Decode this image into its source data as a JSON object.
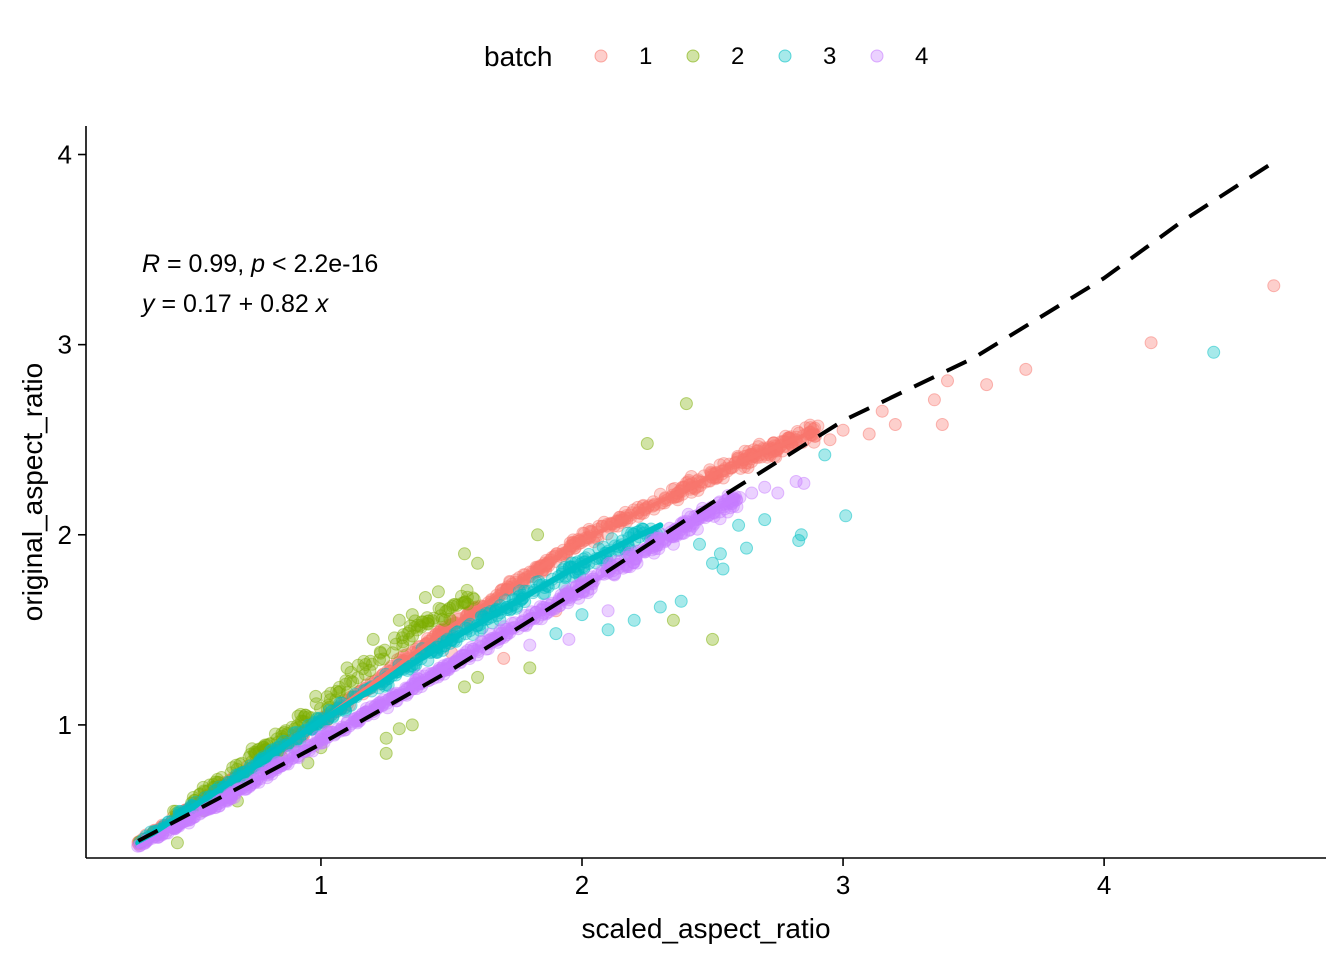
{
  "chart_data": {
    "type": "scatter",
    "xlabel": "scaled_aspect_ratio",
    "ylabel": "original_aspect_ratio",
    "xlim": [
      0.1,
      4.85
    ],
    "ylim": [
      0.3,
      4.15
    ],
    "x_ticks": [
      1,
      2,
      3,
      4
    ],
    "y_ticks": [
      1,
      2,
      3,
      4
    ],
    "grid": false,
    "legend": {
      "title": "batch",
      "placement": "top",
      "entries": [
        "1",
        "2",
        "3",
        "4"
      ]
    },
    "annotation": {
      "r_symbol": "R",
      "r_text": " = 0.99, ",
      "p_symbol": "p",
      "p_text": " < 2.2e-16",
      "y_symbol": "y",
      "eq_text": " = 0.17 + 0.82 ",
      "x_symbol": "x"
    },
    "series": [
      {
        "name": "1",
        "color": "#F8766D",
        "trend": [
          [
            0.3,
            0.38
          ],
          [
            1.0,
            1.02
          ],
          [
            1.5,
            1.52
          ],
          [
            2.0,
            1.97
          ],
          [
            2.6,
            2.38
          ],
          [
            2.9,
            2.55
          ]
        ],
        "outliers": [
          [
            3.0,
            2.55
          ],
          [
            3.1,
            2.53
          ],
          [
            3.15,
            2.65
          ],
          [
            3.2,
            2.58
          ],
          [
            3.35,
            2.71
          ],
          [
            3.38,
            2.58
          ],
          [
            3.4,
            2.81
          ],
          [
            3.55,
            2.79
          ],
          [
            3.7,
            2.87
          ],
          [
            4.18,
            3.01
          ],
          [
            4.65,
            3.31
          ],
          [
            2.95,
            2.5
          ],
          [
            2.82,
            2.5
          ],
          [
            2.7,
            2.45
          ],
          [
            1.5,
            1.38
          ],
          [
            1.7,
            1.35
          ],
          [
            1.9,
            1.6
          ]
        ]
      },
      {
        "name": "2",
        "color": "#7CAE00",
        "trend": [
          [
            0.3,
            0.38
          ],
          [
            0.6,
            0.7
          ],
          [
            1.0,
            1.1
          ],
          [
            1.3,
            1.45
          ],
          [
            1.6,
            1.7
          ]
        ],
        "outliers": [
          [
            2.25,
            2.48
          ],
          [
            2.4,
            2.69
          ],
          [
            1.83,
            2.0
          ],
          [
            1.55,
            1.9
          ],
          [
            1.6,
            1.85
          ],
          [
            1.45,
            1.7
          ],
          [
            1.4,
            1.67
          ],
          [
            1.35,
            1.58
          ],
          [
            1.3,
            1.55
          ],
          [
            1.2,
            1.45
          ],
          [
            1.1,
            1.3
          ],
          [
            0.98,
            1.15
          ],
          [
            0.9,
            0.98
          ],
          [
            0.85,
            0.83
          ],
          [
            0.8,
            0.78
          ],
          [
            0.72,
            0.7
          ],
          [
            0.68,
            0.6
          ],
          [
            0.55,
            0.55
          ],
          [
            0.45,
            0.38
          ],
          [
            1.3,
            0.98
          ],
          [
            1.35,
            1.0
          ],
          [
            1.25,
            0.93
          ],
          [
            1.55,
            1.2
          ],
          [
            1.6,
            1.25
          ],
          [
            1.8,
            1.3
          ],
          [
            1.25,
            0.85
          ],
          [
            2.35,
            1.55
          ],
          [
            2.5,
            1.45
          ],
          [
            1.0,
            0.88
          ],
          [
            0.95,
            0.8
          ]
        ]
      },
      {
        "name": "3",
        "color": "#00BFC4",
        "trend": [
          [
            0.3,
            0.38
          ],
          [
            0.6,
            0.65
          ],
          [
            1.0,
            1.02
          ],
          [
            1.5,
            1.45
          ],
          [
            2.0,
            1.85
          ],
          [
            2.3,
            2.05
          ]
        ],
        "outliers": [
          [
            2.93,
            2.42
          ],
          [
            3.01,
            2.1
          ],
          [
            2.84,
            2.0
          ],
          [
            2.83,
            1.97
          ],
          [
            2.63,
            1.93
          ],
          [
            2.54,
            1.82
          ],
          [
            2.53,
            1.9
          ],
          [
            2.45,
            1.95
          ],
          [
            2.38,
            1.65
          ],
          [
            2.3,
            1.62
          ],
          [
            2.2,
            1.55
          ],
          [
            4.42,
            2.96
          ],
          [
            2.1,
            1.5
          ],
          [
            2.0,
            1.58
          ],
          [
            1.9,
            1.48
          ],
          [
            2.5,
            1.85
          ],
          [
            2.6,
            2.05
          ],
          [
            2.7,
            2.08
          ]
        ]
      },
      {
        "name": "4",
        "color": "#C77CFF",
        "trend": [
          [
            0.3,
            0.36
          ],
          [
            0.6,
            0.58
          ],
          [
            1.0,
            0.92
          ],
          [
            1.5,
            1.32
          ],
          [
            2.0,
            1.72
          ],
          [
            2.4,
            2.05
          ],
          [
            2.6,
            2.2
          ]
        ],
        "outliers": [
          [
            2.82,
            2.28
          ],
          [
            2.85,
            2.27
          ],
          [
            2.75,
            2.22
          ],
          [
            2.65,
            2.22
          ],
          [
            2.58,
            2.15
          ],
          [
            2.48,
            2.13
          ],
          [
            2.45,
            2.1
          ],
          [
            2.38,
            2.06
          ],
          [
            2.7,
            2.25
          ],
          [
            2.35,
            1.95
          ],
          [
            2.1,
            1.6
          ],
          [
            1.95,
            1.45
          ],
          [
            1.8,
            1.42
          ]
        ]
      }
    ],
    "regression_line": {
      "style": "dashed",
      "color": "#000000",
      "points": [
        [
          0.3,
          0.39
        ],
        [
          0.7,
          0.68
        ],
        [
          1.0,
          0.9
        ],
        [
          1.5,
          1.29
        ],
        [
          2.0,
          1.72
        ],
        [
          2.5,
          2.17
        ],
        [
          3.0,
          2.6
        ],
        [
          3.5,
          2.93
        ],
        [
          4.0,
          3.35
        ],
        [
          4.3,
          3.65
        ],
        [
          4.65,
          3.96
        ]
      ]
    }
  }
}
